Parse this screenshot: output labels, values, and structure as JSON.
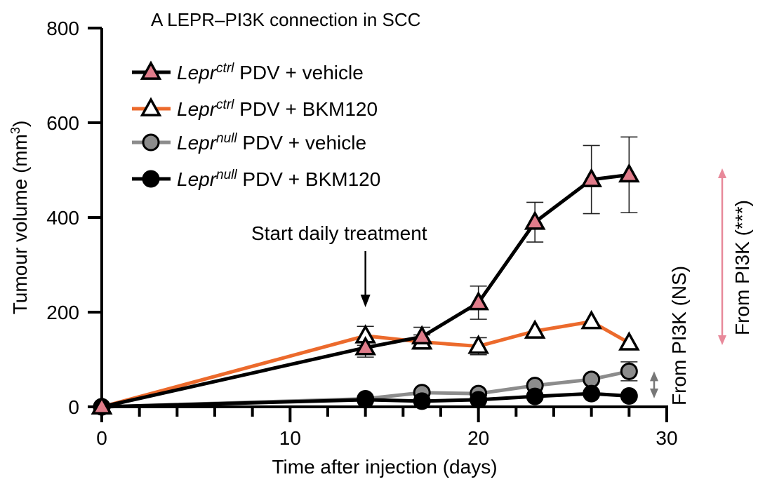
{
  "chart_data": {
    "type": "line",
    "title": "A LEPR–PI3K connection in SCC",
    "xlabel": "Time after injection (days)",
    "ylabel": "Tumour volume (mm³)",
    "xlim": [
      0,
      30
    ],
    "ylim": [
      0,
      800
    ],
    "xticks": [
      0,
      10,
      20,
      30
    ],
    "xtick_labels": [
      "0",
      "10",
      "20",
      "30"
    ],
    "x_minor_tick_step": 2,
    "yticks": [
      0,
      200,
      400,
      600,
      800
    ],
    "ytick_labels": [
      "0",
      "200",
      "400",
      "600",
      "800"
    ],
    "grid": false,
    "legend_position": "top-left",
    "x": [
      0,
      14,
      17,
      20,
      23,
      26,
      28
    ],
    "series": [
      {
        "name": "Lepr ctrl PDV + vehicle",
        "gene": "Lepr",
        "superscript": "ctrl",
        "suffix": " PDV + vehicle",
        "marker": "triangle",
        "marker_fill": "#e07c8a",
        "line_color": "#000000",
        "values": [
          0,
          125,
          148,
          220,
          390,
          480,
          490
        ],
        "errors": [
          0,
          20,
          20,
          35,
          42,
          72,
          80
        ]
      },
      {
        "name": "Lepr ctrl PDV + BKM120",
        "gene": "Lepr",
        "superscript": "ctrl",
        "suffix": " PDV + BKM120",
        "marker": "triangle",
        "marker_fill": "#ffffff",
        "line_color": "#ec6a2c",
        "values": [
          0,
          150,
          137,
          128,
          160,
          180,
          135
        ],
        "errors": [
          0,
          20,
          15,
          18,
          0,
          0,
          0
        ]
      },
      {
        "name": "Lepr null PDV + vehicle",
        "gene": "Lepr",
        "superscript": "null",
        "suffix": " PDV + vehicle",
        "marker": "circle",
        "marker_fill": "#8c8c8c",
        "line_color": "#8c8c8c",
        "values": [
          0,
          17,
          30,
          28,
          45,
          58,
          75
        ],
        "errors": [
          0,
          0,
          0,
          0,
          0,
          0,
          20
        ]
      },
      {
        "name": "Lepr null PDV + BKM120",
        "gene": "Lepr",
        "superscript": "null",
        "suffix": " PDV + BKM120",
        "marker": "circle",
        "marker_fill": "#000000",
        "line_color": "#000000",
        "values": [
          0,
          15,
          12,
          15,
          22,
          28,
          23
        ],
        "errors": [
          0,
          0,
          0,
          0,
          0,
          0,
          0
        ]
      }
    ],
    "annotations": [
      {
        "id": "treatment",
        "text": "Start daily treatment",
        "arrow_x": 14
      },
      {
        "id": "ns",
        "text": "From PI3K (NS)",
        "color": "#777777",
        "y_range": [
          15,
          75
        ]
      },
      {
        "id": "sig",
        "text": "From PI3K (***)",
        "color": "#e8899a",
        "y_range": [
          135,
          490
        ]
      }
    ]
  }
}
